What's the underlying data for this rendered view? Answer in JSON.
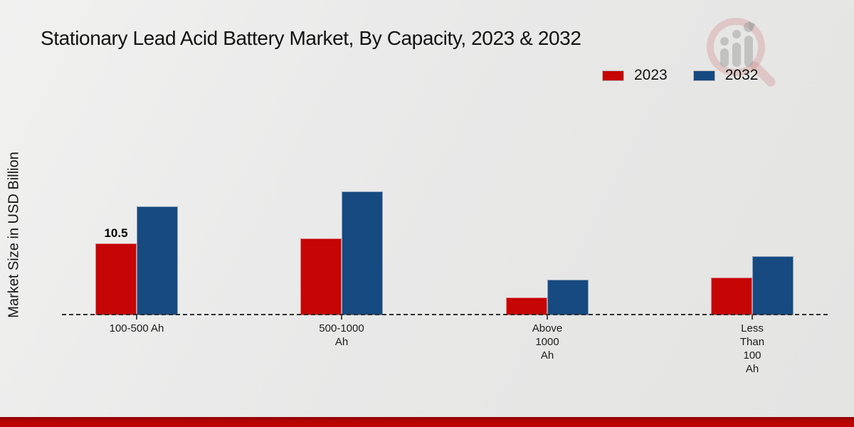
{
  "page": {
    "title": "Stationary Lead Acid Battery Market, By Capacity, 2023 & 2032"
  },
  "y_axis": {
    "label": "Market Size in USD Billion"
  },
  "legend": {
    "items": [
      {
        "label": "2023",
        "color": "#c60505"
      },
      {
        "label": "2032",
        "color": "#164a80"
      }
    ]
  },
  "chart_data": {
    "type": "bar",
    "title": "Stationary Lead Acid Battery Market, By Capacity, 2023 & 2032",
    "ylabel": "Market Size in USD Billion",
    "xlabel": "",
    "categories": [
      "100-500 Ah",
      "500-1000 Ah",
      "Above 1000 Ah",
      "Less Than 100 Ah"
    ],
    "category_label_lines": [
      [
        "100-500 Ah"
      ],
      [
        "500-1000",
        "Ah"
      ],
      [
        "Above",
        "1000",
        "Ah"
      ],
      [
        "Less",
        "Than",
        "100",
        "Ah"
      ]
    ],
    "series": [
      {
        "name": "2023",
        "color": "#c60505",
        "values": [
          10.5,
          11.2,
          2.6,
          5.5
        ]
      },
      {
        "name": "2032",
        "color": "#164a80",
        "values": [
          15.9,
          18.1,
          5.2,
          8.6
        ]
      }
    ],
    "annotations": [
      {
        "series": "2023",
        "category": "100-500 Ah",
        "text": "10.5"
      }
    ],
    "ylim": [
      0,
      20
    ],
    "grid": false,
    "legend_position": "top-right",
    "baseline_style": "dashed"
  },
  "icons": {
    "watermark": "magnifier-bar-chart-logo"
  },
  "colors": {
    "background": "#e9e9e8",
    "series_2023": "#c60505",
    "series_2032": "#164a80",
    "baseline": "#2e2e2e",
    "footer_bar": "#c00404"
  }
}
